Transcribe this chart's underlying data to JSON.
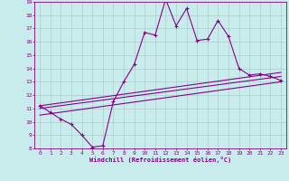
{
  "xlabel": "Windchill (Refroidissement éolien,°C)",
  "xlim": [
    -0.5,
    23.5
  ],
  "ylim": [
    8,
    19
  ],
  "xticks": [
    0,
    1,
    2,
    3,
    4,
    5,
    6,
    7,
    8,
    9,
    10,
    11,
    12,
    13,
    14,
    15,
    16,
    17,
    18,
    19,
    20,
    21,
    22,
    23
  ],
  "yticks": [
    8,
    9,
    10,
    11,
    12,
    13,
    14,
    15,
    16,
    17,
    18,
    19
  ],
  "bg_color": "#c8ecec",
  "grid_color": "#b0cccc",
  "line_color": "#880088",
  "main_series_x": [
    0,
    1,
    2,
    3,
    4,
    5,
    6,
    7,
    8,
    9,
    10,
    11,
    12,
    13,
    14,
    15,
    16,
    17,
    18,
    19,
    20,
    21,
    22,
    23
  ],
  "main_series_y": [
    11.2,
    10.7,
    10.2,
    9.8,
    9.0,
    8.1,
    8.2,
    11.5,
    13.0,
    14.3,
    16.7,
    16.5,
    19.2,
    17.2,
    18.5,
    16.1,
    16.2,
    17.6,
    16.4,
    14.0,
    13.5,
    13.6,
    13.4,
    13.1
  ],
  "line2_x": [
    0,
    23
  ],
  "line2_y": [
    10.5,
    13.0
  ],
  "line3_x": [
    0,
    23
  ],
  "line3_y": [
    11.0,
    13.4
  ],
  "line4_x": [
    0,
    23
  ],
  "line4_y": [
    11.2,
    13.7
  ]
}
